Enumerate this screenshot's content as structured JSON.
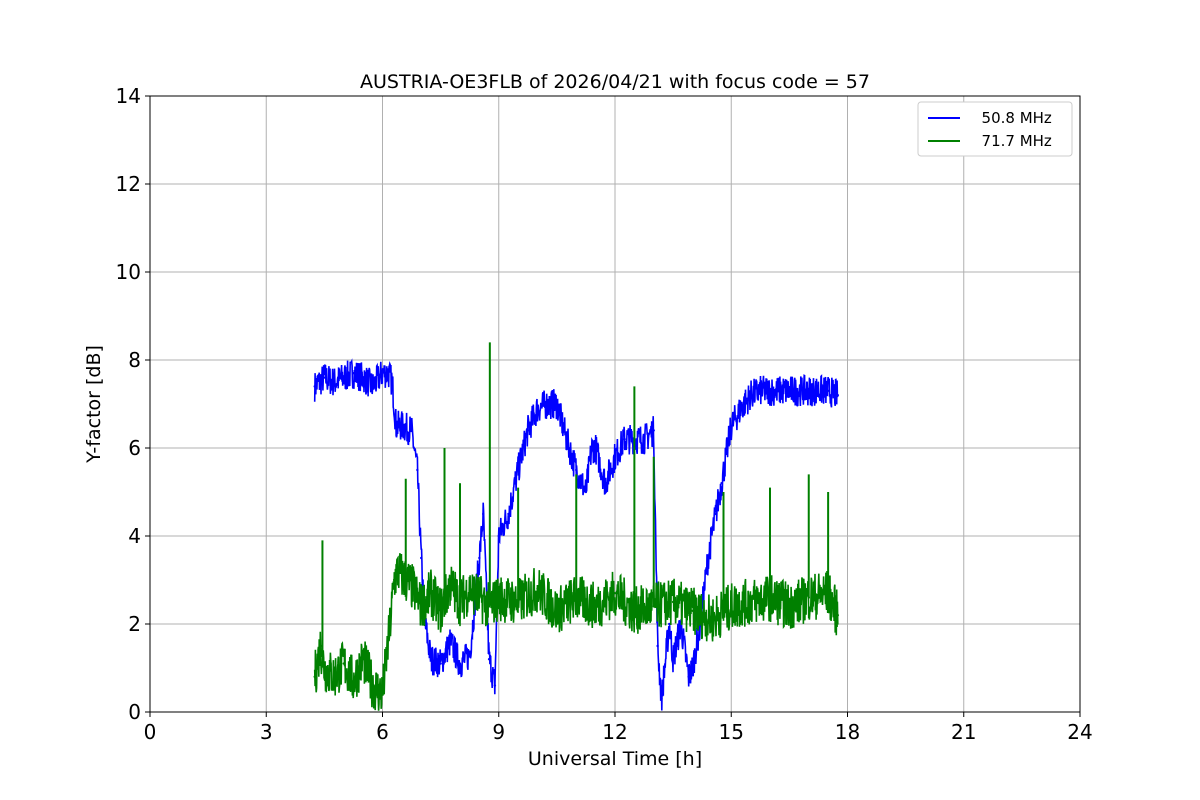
{
  "chart_data": {
    "type": "line",
    "title": "AUSTRIA-OE3FLB of 2026/04/21 with focus code = 57",
    "xlabel": "Universal Time [h]",
    "ylabel": "Y-factor [dB]",
    "xlim": [
      0,
      24
    ],
    "ylim": [
      0,
      14
    ],
    "xticks": [
      0,
      3,
      6,
      9,
      12,
      15,
      18,
      21,
      24
    ],
    "yticks": [
      0,
      2,
      4,
      6,
      8,
      10,
      12,
      14
    ],
    "grid": true,
    "legend_position": "top-right",
    "series": [
      {
        "name": "  50.8 MHz",
        "color": "#0000ff",
        "x": [
          4.25,
          4.5,
          4.75,
          5.0,
          5.25,
          5.5,
          5.75,
          6.0,
          6.15,
          6.25,
          6.35,
          6.5,
          6.75,
          6.9,
          7.0,
          7.1,
          7.25,
          7.5,
          7.75,
          8.0,
          8.25,
          8.5,
          8.6,
          8.75,
          8.9,
          9.0,
          9.25,
          9.5,
          9.75,
          10.0,
          10.25,
          10.5,
          10.75,
          11.0,
          11.25,
          11.4,
          11.5,
          11.75,
          12.0,
          12.25,
          12.5,
          12.75,
          13.0,
          13.1,
          13.2,
          13.4,
          13.5,
          13.7,
          13.9,
          14.0,
          14.2,
          14.4,
          14.6,
          14.75,
          15.0,
          15.25,
          15.5,
          15.75,
          16.0,
          16.5,
          17.0,
          17.5,
          17.75
        ],
        "values": [
          7.4,
          7.6,
          7.5,
          7.6,
          7.7,
          7.6,
          7.4,
          7.7,
          7.7,
          7.5,
          6.5,
          6.5,
          6.4,
          5.5,
          3.5,
          2.0,
          1.2,
          1.1,
          1.6,
          1.1,
          1.3,
          3.5,
          4.5,
          1.2,
          0.6,
          4.0,
          4.5,
          5.5,
          6.4,
          6.9,
          7.0,
          7.0,
          6.2,
          5.5,
          5.0,
          6.0,
          6.0,
          5.2,
          5.8,
          6.2,
          6.2,
          6.2,
          6.4,
          1.5,
          0.3,
          2.0,
          1.2,
          2.0,
          0.8,
          1.0,
          2.0,
          3.5,
          4.5,
          5.2,
          6.5,
          6.9,
          7.2,
          7.3,
          7.3,
          7.3,
          7.3,
          7.3,
          7.2
        ]
      },
      {
        "name": "  71.7 MHz",
        "color": "#008000",
        "x": [
          4.25,
          4.4,
          4.5,
          4.75,
          5.0,
          5.25,
          5.5,
          5.75,
          6.0,
          6.2,
          6.3,
          6.4,
          6.6,
          6.8,
          7.0,
          7.25,
          7.5,
          7.75,
          8.0,
          8.25,
          8.5,
          8.75,
          9.0,
          9.5,
          10.0,
          10.5,
          11.0,
          11.5,
          12.0,
          12.5,
          13.0,
          13.5,
          14.0,
          14.5,
          15.0,
          15.5,
          16.0,
          16.5,
          17.0,
          17.5,
          17.75
        ],
        "values": [
          0.8,
          1.5,
          1.0,
          0.8,
          1.1,
          0.7,
          1.2,
          0.6,
          0.4,
          2.0,
          3.0,
          3.2,
          3.0,
          2.8,
          2.4,
          2.7,
          2.3,
          2.9,
          2.5,
          2.8,
          2.6,
          2.4,
          2.6,
          2.5,
          2.8,
          2.3,
          2.6,
          2.4,
          2.7,
          2.3,
          2.4,
          2.5,
          2.3,
          2.1,
          2.4,
          2.5,
          2.6,
          2.4,
          2.6,
          2.7,
          2.2
        ],
        "spikes": [
          {
            "x": 4.45,
            "y": 3.9
          },
          {
            "x": 6.6,
            "y": 5.3
          },
          {
            "x": 7.6,
            "y": 6.0
          },
          {
            "x": 8.0,
            "y": 5.2
          },
          {
            "x": 8.77,
            "y": 8.4
          },
          {
            "x": 9.5,
            "y": 5.1
          },
          {
            "x": 11.0,
            "y": 5.4
          },
          {
            "x": 12.5,
            "y": 7.4
          },
          {
            "x": 13.0,
            "y": 5.8
          },
          {
            "x": 14.8,
            "y": 5.0
          },
          {
            "x": 16.0,
            "y": 5.1
          },
          {
            "x": 17.0,
            "y": 5.4
          },
          {
            "x": 17.5,
            "y": 5.0
          }
        ]
      }
    ]
  }
}
